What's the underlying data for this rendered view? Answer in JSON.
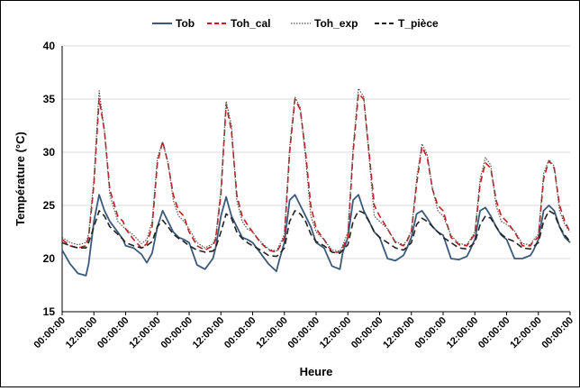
{
  "chart_data": {
    "type": "line",
    "title": "",
    "xlabel": "Heure",
    "ylabel": "Température (°C)",
    "ylim": [
      15,
      40
    ],
    "yticks": [
      15,
      20,
      25,
      30,
      35,
      40
    ],
    "xticks": [
      "00:00:00",
      "12:00:00",
      "00:00:00",
      "12:00:00",
      "00:00:00",
      "12:00:00",
      "00:00:00",
      "12:00:00",
      "00:00:00",
      "12:00:00",
      "00:00:00",
      "12:00:00",
      "00:00:00",
      "12:00:00",
      "00:00:00",
      "12:00:00",
      "00:00:00"
    ],
    "grid": "horizontal",
    "legend_position": "top",
    "x_unit": "hours",
    "x": [
      0,
      3,
      6,
      9,
      10,
      12,
      14,
      16,
      18,
      21,
      23,
      24,
      27,
      30,
      32,
      34,
      36,
      38,
      40,
      42,
      44,
      46,
      48,
      51,
      54,
      57,
      58,
      60,
      62,
      64,
      66,
      68,
      70,
      72,
      75,
      78,
      81,
      82,
      84,
      86,
      88,
      90,
      92,
      94,
      96,
      99,
      102,
      105,
      106,
      108,
      110,
      112,
      114,
      116,
      118,
      120,
      123,
      126,
      129,
      130,
      132,
      134,
      136,
      138,
      140,
      142,
      144,
      147,
      150,
      153,
      154,
      156,
      158,
      160,
      162,
      164,
      166,
      168,
      171,
      174,
      177,
      178,
      180,
      182,
      184,
      186,
      188,
      190,
      192
    ],
    "series": [
      {
        "name": "Tob",
        "color": "#3b5a7a",
        "dash": "solid",
        "values": [
          20.8,
          19.5,
          18.6,
          18.4,
          19.5,
          23.5,
          26.0,
          24.5,
          23.5,
          22.5,
          21.8,
          21.2,
          21.0,
          20.4,
          19.6,
          20.5,
          23.0,
          24.5,
          23.5,
          22.5,
          22.0,
          21.8,
          21.5,
          19.4,
          19.0,
          20.0,
          21.0,
          24.0,
          25.8,
          24.0,
          23.0,
          22.0,
          21.8,
          21.5,
          20.5,
          19.5,
          18.8,
          19.8,
          21.5,
          25.5,
          26.0,
          25.0,
          24.0,
          23.0,
          21.5,
          21.0,
          19.3,
          19.0,
          20.5,
          22.0,
          25.5,
          26.0,
          24.5,
          23.5,
          22.5,
          22.0,
          20.0,
          19.8,
          20.3,
          20.8,
          22.0,
          24.2,
          24.5,
          23.8,
          23.0,
          22.5,
          22.2,
          20.0,
          19.9,
          20.2,
          20.7,
          21.8,
          24.5,
          24.8,
          24.0,
          23.0,
          22.2,
          21.8,
          20.0,
          20.0,
          20.3,
          20.7,
          21.8,
          24.5,
          25.0,
          24.5,
          23.0,
          22.0,
          21.5
        ]
      },
      {
        "name": "Toh_cal",
        "color": "#c81e1e",
        "dash": "dash",
        "values": [
          21.8,
          21.2,
          21.0,
          21.2,
          22.0,
          27.0,
          35.0,
          32.0,
          26.5,
          24.0,
          23.5,
          22.8,
          21.8,
          21.0,
          21.4,
          23.0,
          29.0,
          31.0,
          29.0,
          26.0,
          24.5,
          24.0,
          22.5,
          21.2,
          20.8,
          21.2,
          21.8,
          26.0,
          34.5,
          32.0,
          26.0,
          24.0,
          23.2,
          22.5,
          21.5,
          20.8,
          20.6,
          21.0,
          22.0,
          30.0,
          35.0,
          34.0,
          30.0,
          25.0,
          22.8,
          21.8,
          20.6,
          20.6,
          21.0,
          22.0,
          30.0,
          35.5,
          35.0,
          30.0,
          25.0,
          24.0,
          22.8,
          21.5,
          21.2,
          21.5,
          22.5,
          27.0,
          30.5,
          29.5,
          26.5,
          25.0,
          24.5,
          22.0,
          21.3,
          21.2,
          21.6,
          22.3,
          27.0,
          29.0,
          28.5,
          25.5,
          24.0,
          23.5,
          22.5,
          21.2,
          21.2,
          21.6,
          22.0,
          27.5,
          29.2,
          28.5,
          25.0,
          23.5,
          22.5
        ]
      },
      {
        "name": "Toh_exp",
        "color": "#555555",
        "dash": "dot",
        "values": [
          22.0,
          21.5,
          21.3,
          21.5,
          22.3,
          27.5,
          35.8,
          32.0,
          26.0,
          23.5,
          23.0,
          22.8,
          22.2,
          21.4,
          21.8,
          23.5,
          29.5,
          31.0,
          29.0,
          25.5,
          24.0,
          23.5,
          22.8,
          21.5,
          21.0,
          21.4,
          22.0,
          26.5,
          34.8,
          32.5,
          25.5,
          23.5,
          22.8,
          22.5,
          21.6,
          20.9,
          20.7,
          21.2,
          22.3,
          30.5,
          35.2,
          34.2,
          29.5,
          24.0,
          22.5,
          21.8,
          20.8,
          20.7,
          21.2,
          22.5,
          30.5,
          36.0,
          35.2,
          29.5,
          24.0,
          23.5,
          22.8,
          21.6,
          21.3,
          21.6,
          22.6,
          27.5,
          30.8,
          29.8,
          26.5,
          24.5,
          24.0,
          22.2,
          21.4,
          21.3,
          21.7,
          22.5,
          27.5,
          29.5,
          28.8,
          25.0,
          23.5,
          23.2,
          22.6,
          21.4,
          21.3,
          21.7,
          22.3,
          28.0,
          29.3,
          28.7,
          24.5,
          23.2,
          22.5
        ]
      },
      {
        "name": "T_pièce",
        "color": "#222222",
        "dash": "dash",
        "values": [
          21.5,
          21.2,
          21.0,
          21.0,
          21.5,
          23.0,
          24.5,
          24.0,
          23.0,
          22.3,
          21.8,
          21.5,
          21.2,
          21.0,
          21.2,
          21.6,
          23.0,
          23.6,
          23.0,
          22.3,
          21.9,
          21.6,
          21.2,
          20.8,
          20.6,
          20.7,
          21.0,
          22.5,
          24.2,
          23.8,
          22.5,
          21.9,
          21.5,
          21.2,
          20.8,
          20.3,
          20.2,
          20.4,
          21.0,
          23.5,
          24.5,
          24.2,
          23.5,
          22.3,
          21.6,
          21.2,
          20.6,
          20.5,
          20.8,
          21.3,
          23.5,
          24.5,
          24.3,
          23.5,
          22.5,
          22.0,
          21.5,
          21.0,
          20.8,
          21.0,
          21.5,
          23.2,
          23.8,
          23.5,
          23.0,
          22.5,
          22.0,
          21.5,
          21.0,
          20.9,
          21.1,
          21.5,
          23.2,
          24.0,
          23.8,
          23.0,
          22.3,
          21.9,
          21.6,
          21.0,
          20.9,
          21.1,
          21.5,
          23.5,
          24.5,
          24.2,
          23.0,
          22.2,
          21.6
        ]
      }
    ]
  }
}
